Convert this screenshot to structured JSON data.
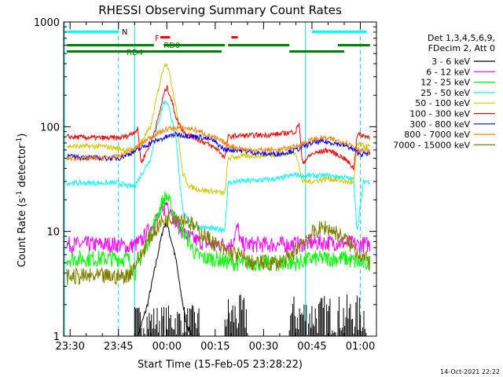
{
  "chart_data": {
    "type": "line",
    "title": "RHESSI Observing Summary Count Rates",
    "xlabel": "Start Time (15-Feb-05 23:28:22)",
    "ylabel": "Count Rate (s",
    "ylabel_sup1": "-1",
    "ylabel_mid": " detector",
    "ylabel_sup2": "-1",
    "ylabel_end": ")",
    "yscale": "log",
    "ylim": [
      1,
      1000
    ],
    "xlim_minutes": [
      -2,
      95
    ],
    "x_ticks": [
      {
        "label": "23:30",
        "minutes": 0
      },
      {
        "label": "23:45",
        "minutes": 15
      },
      {
        "label": "00:00",
        "minutes": 30
      },
      {
        "label": "00:15",
        "minutes": 45
      },
      {
        "label": "00:30",
        "minutes": 60
      },
      {
        "label": "00:45",
        "minutes": 75
      },
      {
        "label": "01:00",
        "minutes": 90
      }
    ],
    "y_ticks": [
      {
        "label": "1",
        "value": 1
      },
      {
        "label": "10",
        "value": 10
      },
      {
        "label": "100",
        "value": 100
      },
      {
        "label": "1000",
        "value": 1000
      }
    ],
    "legend_header": [
      "Det 1,3,4,5,6,9,",
      "FDecim 2, Att 0"
    ],
    "legend_placement": "right",
    "series": [
      {
        "name": "3 - 6 keV",
        "color": "#000000",
        "points": [
          [
            21,
            1
          ],
          [
            24,
            2
          ],
          [
            26,
            4
          ],
          [
            28,
            8
          ],
          [
            29,
            11
          ],
          [
            30,
            12
          ],
          [
            31,
            9
          ],
          [
            32,
            7
          ],
          [
            33,
            5
          ],
          [
            34,
            3
          ],
          [
            35,
            2
          ],
          [
            36,
            1.3
          ],
          [
            38,
            1
          ]
        ],
        "noise": [
          [
            20,
            40,
            1,
            2
          ],
          [
            48,
            55,
            1,
            2.5
          ],
          [
            68,
            92,
            1,
            2.5
          ]
        ]
      },
      {
        "name": "6 - 12 keV",
        "color": "#ff00ff",
        "points": [
          [
            -1,
            7.5
          ],
          [
            15,
            7.5
          ],
          [
            18,
            7
          ],
          [
            22,
            8
          ],
          [
            26,
            12
          ],
          [
            29,
            16
          ],
          [
            30,
            19
          ],
          [
            31,
            17
          ],
          [
            33,
            12
          ],
          [
            36,
            9
          ],
          [
            40,
            8
          ],
          [
            45,
            7.5
          ],
          [
            50,
            7.5
          ],
          [
            52,
            11
          ],
          [
            53,
            7.5
          ],
          [
            60,
            7.5
          ],
          [
            65,
            7.5
          ],
          [
            70,
            7.5
          ],
          [
            75,
            7.8
          ],
          [
            80,
            7.8
          ],
          [
            85,
            7.8
          ],
          [
            89,
            7.5
          ],
          [
            93,
            7.5
          ]
        ],
        "noise": []
      },
      {
        "name": "12 - 25 keV",
        "color": "#00ff00",
        "points": [
          [
            -1,
            5.5
          ],
          [
            15,
            5.5
          ],
          [
            18,
            5.5
          ],
          [
            20,
            4
          ],
          [
            24,
            8
          ],
          [
            27,
            14
          ],
          [
            29,
            20
          ],
          [
            30,
            22
          ],
          [
            31,
            18
          ],
          [
            33,
            13
          ],
          [
            35,
            10
          ],
          [
            37,
            8
          ],
          [
            39,
            6
          ],
          [
            42,
            5.5
          ],
          [
            45,
            5.5
          ],
          [
            50,
            5
          ],
          [
            60,
            5
          ],
          [
            65,
            5
          ],
          [
            70,
            5
          ],
          [
            75,
            5.5
          ],
          [
            80,
            5.5
          ],
          [
            85,
            5.5
          ],
          [
            90,
            5
          ],
          [
            93,
            5
          ]
        ],
        "noise": []
      },
      {
        "name": "25 - 50 keV",
        "color": "#00ffff",
        "points": [
          [
            -1,
            29
          ],
          [
            15,
            29
          ],
          [
            18,
            27
          ],
          [
            20,
            27
          ],
          [
            25,
            50
          ],
          [
            27,
            100
          ],
          [
            29,
            170
          ],
          [
            30,
            175
          ],
          [
            31,
            140
          ],
          [
            33,
            70
          ],
          [
            34,
            30
          ],
          [
            35,
            16
          ],
          [
            37,
            12
          ],
          [
            40,
            11
          ],
          [
            45,
            10.5
          ],
          [
            48,
            10.5
          ],
          [
            49,
            29
          ],
          [
            52,
            30
          ],
          [
            60,
            31
          ],
          [
            65,
            32
          ],
          [
            70,
            35
          ],
          [
            72,
            34
          ],
          [
            75,
            34
          ],
          [
            80,
            34
          ],
          [
            85,
            33
          ],
          [
            88,
            31
          ],
          [
            89,
            10
          ],
          [
            91,
            30
          ],
          [
            93,
            30
          ]
        ],
        "noise": []
      },
      {
        "name": "50 - 100 keV",
        "color": "#d4c800",
        "points": [
          [
            -1,
            65
          ],
          [
            10,
            65
          ],
          [
            15,
            62
          ],
          [
            18,
            60
          ],
          [
            20,
            58
          ],
          [
            25,
            100
          ],
          [
            27,
            200
          ],
          [
            29,
            380
          ],
          [
            30,
            410
          ],
          [
            31,
            300
          ],
          [
            33,
            150
          ],
          [
            34,
            60
          ],
          [
            35,
            35
          ],
          [
            37,
            27
          ],
          [
            40,
            25
          ],
          [
            45,
            24
          ],
          [
            48,
            23
          ],
          [
            49,
            50
          ],
          [
            52,
            52
          ],
          [
            60,
            53
          ],
          [
            65,
            55
          ],
          [
            70,
            57
          ],
          [
            72,
            30
          ],
          [
            75,
            30
          ],
          [
            80,
            32
          ],
          [
            85,
            30
          ],
          [
            88,
            29
          ],
          [
            89,
            68
          ],
          [
            91,
            66
          ],
          [
            93,
            64
          ]
        ],
        "noise": []
      },
      {
        "name": "100 - 300 keV",
        "color": "#ff0000",
        "points": [
          [
            -1,
            80
          ],
          [
            10,
            78
          ],
          [
            15,
            78
          ],
          [
            18,
            82
          ],
          [
            20,
            90
          ],
          [
            21,
            95
          ],
          [
            22,
            45
          ],
          [
            25,
            70
          ],
          [
            27,
            110
          ],
          [
            29,
            200
          ],
          [
            30,
            240
          ],
          [
            31,
            200
          ],
          [
            33,
            120
          ],
          [
            35,
            90
          ],
          [
            38,
            80
          ],
          [
            42,
            70
          ],
          [
            46,
            60
          ],
          [
            48,
            50
          ],
          [
            49,
            80
          ],
          [
            52,
            82
          ],
          [
            60,
            83
          ],
          [
            65,
            85
          ],
          [
            70,
            90
          ],
          [
            71,
            110
          ],
          [
            72,
            45
          ],
          [
            75,
            55
          ],
          [
            80,
            60
          ],
          [
            85,
            50
          ],
          [
            88,
            40
          ],
          [
            89,
            85
          ],
          [
            91,
            82
          ],
          [
            93,
            80
          ]
        ],
        "noise": []
      },
      {
        "name": "300 - 800 keV",
        "color": "#0000ff",
        "points": [
          [
            -1,
            52
          ],
          [
            10,
            50
          ],
          [
            15,
            50
          ],
          [
            20,
            58
          ],
          [
            25,
            70
          ],
          [
            30,
            80
          ],
          [
            33,
            85
          ],
          [
            36,
            82
          ],
          [
            40,
            80
          ],
          [
            44,
            75
          ],
          [
            48,
            60
          ],
          [
            52,
            60
          ],
          [
            55,
            58
          ],
          [
            60,
            55
          ],
          [
            65,
            55
          ],
          [
            70,
            60
          ],
          [
            75,
            70
          ],
          [
            78,
            72
          ],
          [
            82,
            70
          ],
          [
            86,
            65
          ],
          [
            90,
            55
          ],
          [
            93,
            55
          ]
        ],
        "noise": []
      },
      {
        "name": "800 - 7000 keV",
        "color": "#ff8000",
        "points": [
          [
            -1,
            50
          ],
          [
            10,
            50
          ],
          [
            15,
            52
          ],
          [
            20,
            62
          ],
          [
            25,
            80
          ],
          [
            30,
            95
          ],
          [
            34,
            98
          ],
          [
            38,
            95
          ],
          [
            42,
            85
          ],
          [
            46,
            75
          ],
          [
            50,
            65
          ],
          [
            55,
            60
          ],
          [
            60,
            60
          ],
          [
            65,
            60
          ],
          [
            70,
            65
          ],
          [
            75,
            75
          ],
          [
            78,
            78
          ],
          [
            82,
            75
          ],
          [
            86,
            70
          ],
          [
            90,
            60
          ],
          [
            93,
            58
          ]
        ],
        "noise": []
      },
      {
        "name": "7000 - 15000 keV",
        "color": "#808000",
        "points": [
          [
            -1,
            3.7
          ],
          [
            15,
            3.7
          ],
          [
            18,
            3.8
          ],
          [
            22,
            6
          ],
          [
            25,
            9
          ],
          [
            28,
            12
          ],
          [
            30,
            13
          ],
          [
            32,
            14
          ],
          [
            36,
            13
          ],
          [
            40,
            10
          ],
          [
            44,
            8
          ],
          [
            48,
            6.5
          ],
          [
            52,
            6
          ],
          [
            56,
            5
          ],
          [
            60,
            5
          ],
          [
            64,
            5
          ],
          [
            68,
            5.5
          ],
          [
            72,
            8
          ],
          [
            76,
            10
          ],
          [
            79,
            11
          ],
          [
            82,
            10
          ],
          [
            86,
            8
          ],
          [
            90,
            6
          ],
          [
            93,
            5
          ]
        ],
        "noise": []
      }
    ],
    "annotations": {
      "N": "N",
      "F": "F",
      "RD0": "RD0",
      "RD4": "RD4"
    },
    "status_bars": {
      "night": [
        [
          -1,
          15
        ],
        [
          75,
          92
        ]
      ],
      "flare": [
        [
          28,
          31
        ]
      ],
      "saa_red": [
        [
          50,
          52
        ]
      ],
      "green_upper": [
        [
          -1,
          26
        ],
        [
          29,
          48
        ],
        [
          49,
          68
        ],
        [
          83,
          93
        ]
      ],
      "green_lower": [
        [
          -1,
          25
        ],
        [
          25,
          47
        ],
        [
          68,
          85
        ]
      ]
    },
    "vertical_dashed_lines": [
      15,
      90
    ],
    "vertical_solid_lines": [
      20,
      73
    ],
    "timestamp": "14-Oct-2021 22:22"
  }
}
